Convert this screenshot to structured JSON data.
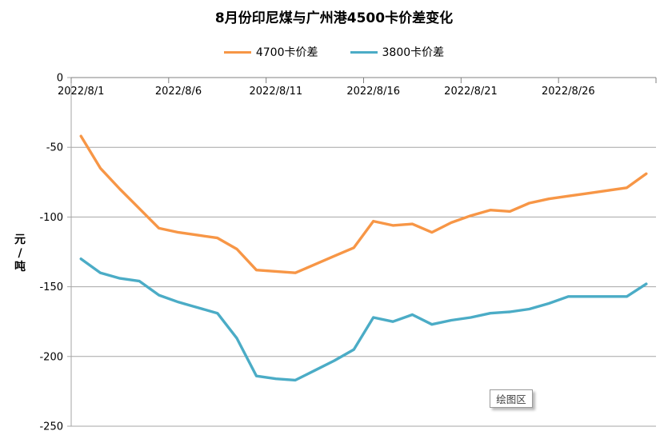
{
  "title": "8月份印尼煤与广州港4500卡价差变化",
  "y_axis_title": "元/吨",
  "plot_area_tooltip": "绘图区",
  "legend": [
    {
      "label": "4700卡价差",
      "color": "#F79646"
    },
    {
      "label": "3800卡价差",
      "color": "#4BACC6"
    }
  ],
  "colors": {
    "axis_line": "#808080",
    "gridline": "#A6A6A6",
    "text": "#000000"
  },
  "chart_data": {
    "type": "line",
    "title": "8月份印尼煤与广州港4500卡价差变化",
    "xlabel": "",
    "ylabel": "元/吨",
    "ylim": [
      -250,
      0
    ],
    "yticks": [
      0,
      -50,
      -100,
      -150,
      -200,
      -250
    ],
    "grid": "horizontal",
    "legend_position": "top",
    "x_tick_labels": [
      "2022/8/1",
      "2022/8/6",
      "2022/8/11",
      "2022/8/16",
      "2022/8/21",
      "2022/8/26"
    ],
    "categories": [
      "2022/8/1",
      "2022/8/2",
      "2022/8/3",
      "2022/8/4",
      "2022/8/5",
      "2022/8/6",
      "2022/8/7",
      "2022/8/8",
      "2022/8/9",
      "2022/8/10",
      "2022/8/11",
      "2022/8/12",
      "2022/8/13",
      "2022/8/14",
      "2022/8/15",
      "2022/8/16",
      "2022/8/17",
      "2022/8/18",
      "2022/8/19",
      "2022/8/20",
      "2022/8/21",
      "2022/8/22",
      "2022/8/23",
      "2022/8/24",
      "2022/8/25",
      "2022/8/26",
      "2022/8/27",
      "2022/8/28",
      "2022/8/29",
      "2022/8/30"
    ],
    "series": [
      {
        "name": "4700卡价差",
        "color": "#F79646",
        "values": [
          -42,
          -65,
          -80,
          -94,
          -108,
          -111,
          -113,
          -115,
          -123,
          -138,
          -139,
          -140,
          -134,
          -128,
          -122,
          -103,
          -106,
          -105,
          -111,
          -104,
          -99,
          -95,
          -96,
          -90,
          -87,
          -85,
          -83,
          -81,
          -79,
          -69
        ]
      },
      {
        "name": "3800卡价差",
        "color": "#4BACC6",
        "values": [
          -130,
          -140,
          -144,
          -146,
          -156,
          -161,
          -165,
          -169,
          -187,
          -214,
          -216,
          -217,
          -210,
          -203,
          -195,
          -172,
          -175,
          -170,
          -177,
          -174,
          -172,
          -169,
          -168,
          -166,
          -162,
          -157,
          -157,
          -157,
          -157,
          -148
        ]
      }
    ]
  }
}
